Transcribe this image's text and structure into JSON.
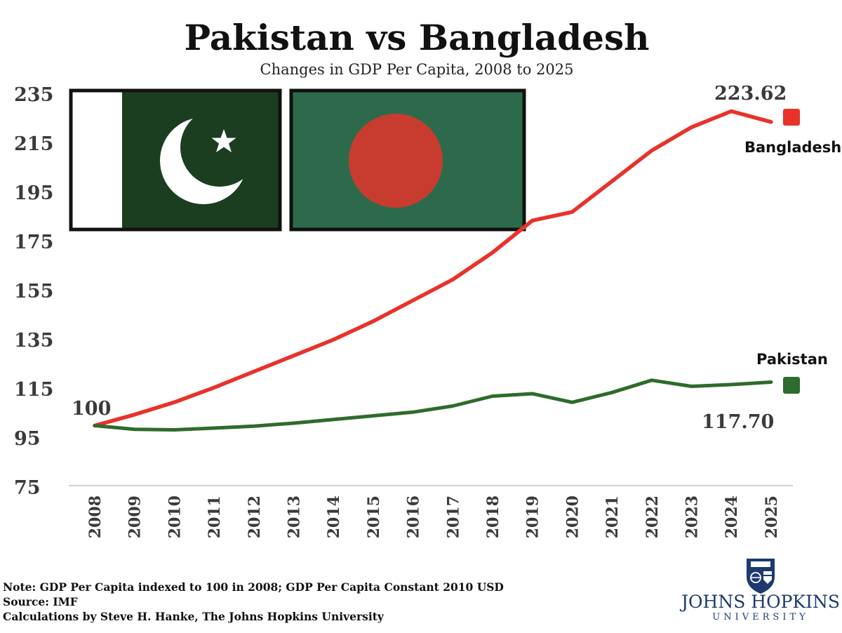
{
  "chart_data": {
    "type": "line",
    "title": "Pakistan vs Bangladesh",
    "subtitle": "Changes in GDP Per Capita, 2008 to 2025",
    "xlabel": "",
    "ylabel": "",
    "x": [
      2008,
      2009,
      2010,
      2011,
      2012,
      2013,
      2014,
      2015,
      2016,
      2017,
      2018,
      2019,
      2020,
      2021,
      2022,
      2023,
      2024,
      2025
    ],
    "ylim": [
      75,
      235
    ],
    "yticks": [
      75,
      95,
      115,
      135,
      155,
      175,
      195,
      215,
      235
    ],
    "grid": false,
    "series": [
      {
        "name": "Bangladesh",
        "color": "#e8322a",
        "values": [
          100,
          104.5,
          109.5,
          115.5,
          122,
          128.5,
          135,
          142.5,
          151,
          159.5,
          170.5,
          183.5,
          187,
          199.5,
          212,
          221.5,
          228,
          223.62
        ]
      },
      {
        "name": "Pakistan",
        "color": "#2f6b2c",
        "values": [
          100,
          98.5,
          98.3,
          99,
          99.8,
          101,
          102.5,
          104,
          105.5,
          108,
          112,
          113,
          109.5,
          113.5,
          118.5,
          116,
          116.7,
          117.7
        ]
      }
    ],
    "start_label": "100",
    "end_labels": {
      "Bangladesh": "223.62",
      "Pakistan": "117.70"
    }
  },
  "notes": [
    "Note: GDP Per Capita indexed to 100 in 2008; GDP Per Capita Constant 2010 USD",
    "Source: IMF",
    "Calculations by Steve H. Hanke, The Johns Hopkins University"
  ],
  "logo": {
    "line1": "JOHNS HOPKINS",
    "line2": "UNIVERSITY"
  },
  "colors": {
    "pakistan_flag_green": "#1b3e20",
    "bangladesh_flag_green": "#2c6a4b",
    "bangladesh_flag_red": "#c83c2f",
    "logo_blue": "#1d3a6e"
  }
}
